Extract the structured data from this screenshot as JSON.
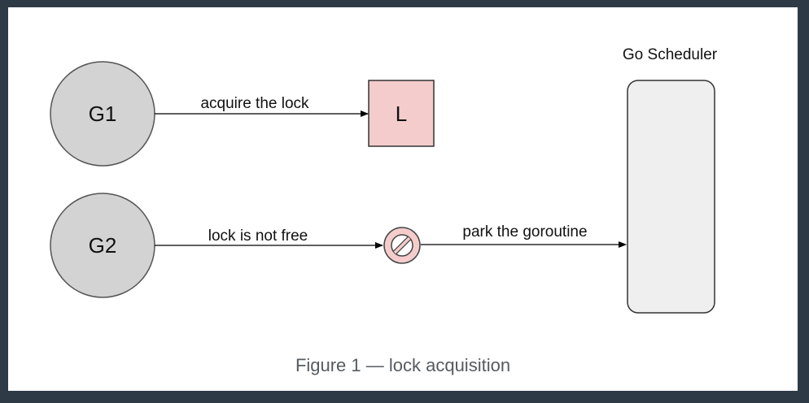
{
  "diagram": {
    "nodes": {
      "g1": "G1",
      "g2": "G2",
      "lock": "L",
      "scheduler": "Go Scheduler"
    },
    "edges": {
      "acquire": "acquire the lock",
      "not_free": "lock is not free",
      "park": "park the goroutine"
    },
    "icons": {
      "blocked": "no-entry-icon"
    },
    "colors": {
      "goroutine_fill": "#d3d3d3",
      "lock_fill": "#f4cccc",
      "scheduler_fill": "#efefef",
      "stroke": "#000000"
    }
  },
  "caption": "Figure 1 — lock acquisition"
}
